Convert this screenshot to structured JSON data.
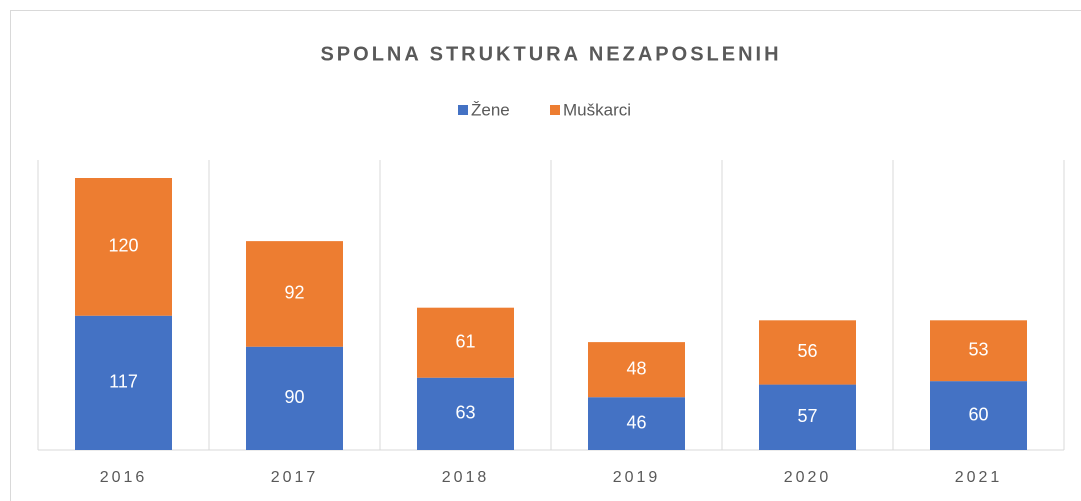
{
  "chart_data": {
    "type": "stacked_bar",
    "title": "SPOLNA STRUKTURA NEZAPOSLENIH",
    "categories": [
      "2016",
      "2017",
      "2018",
      "2019",
      "2020",
      "2021"
    ],
    "series": [
      {
        "name": "Žene",
        "color": "#4472c4",
        "values": [
          117,
          90,
          63,
          46,
          57,
          60
        ]
      },
      {
        "name": "Muškarci",
        "color": "#ed7d31",
        "values": [
          120,
          92,
          61,
          48,
          56,
          53
        ]
      }
    ]
  }
}
